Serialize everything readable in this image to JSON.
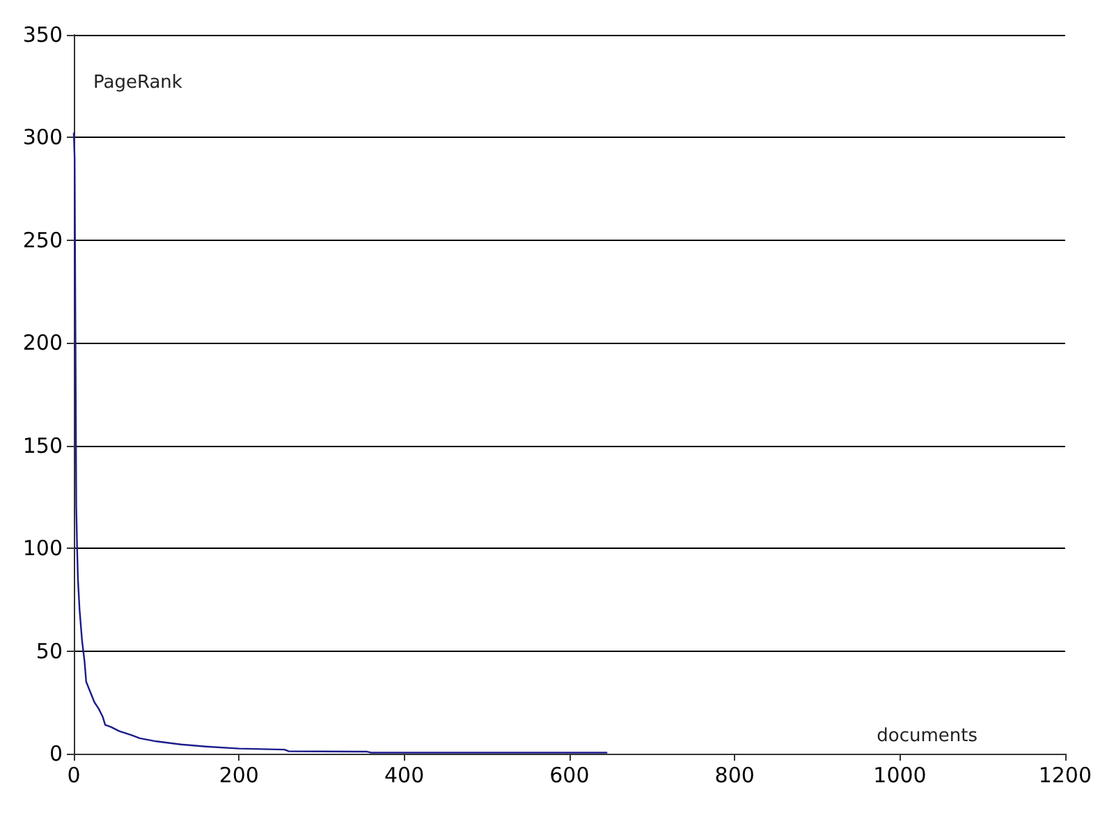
{
  "chart_data": {
    "type": "line",
    "xlabel": "documents",
    "ylabel": "PageRank",
    "x": [
      0,
      1,
      2,
      3,
      4,
      5,
      7,
      10,
      13,
      15,
      20,
      25,
      30,
      35,
      38,
      45,
      55,
      70,
      80,
      100,
      130,
      160,
      200,
      255,
      260,
      355,
      360,
      645
    ],
    "series": [
      {
        "color": "#1c1c8c",
        "values": [
          302,
          290,
          205,
          120,
          100,
          85,
          70,
          55,
          45,
          35,
          30,
          25,
          22,
          18,
          14,
          13,
          11,
          9,
          7.5,
          6,
          4.5,
          3.5,
          2.5,
          2,
          1.2,
          1,
          0.5,
          0.5
        ]
      }
    ],
    "xlim": [
      0,
      1200
    ],
    "xticks": [
      0,
      200,
      400,
      600,
      800,
      1000,
      1200
    ],
    "ylim": [
      0,
      350
    ],
    "yticks": [
      0,
      50,
      100,
      150,
      200,
      250,
      300,
      350
    ],
    "grid": "y",
    "marker": "none",
    "line_style": "solid"
  }
}
